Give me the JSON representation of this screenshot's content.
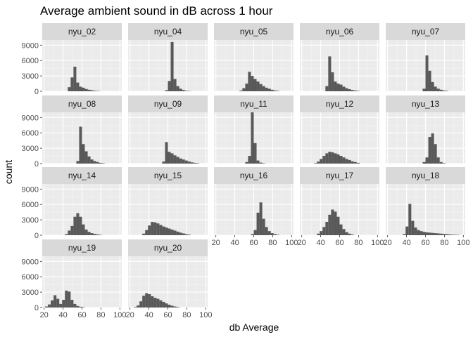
{
  "chart_data": {
    "type": "bar",
    "title": "Average ambient sound in dB across 1 hour",
    "xlabel": "db Average",
    "ylabel": "count",
    "xlim": [
      18,
      102
    ],
    "ylim": [
      0,
      10000
    ],
    "x_ticks": [
      20,
      40,
      60,
      80,
      100
    ],
    "y_ticks": [
      0,
      3000,
      6000,
      9000
    ],
    "bin_width": 3,
    "grid": true,
    "facets": [
      {
        "name": "nyu_02",
        "bins": [
          [
            45,
            800
          ],
          [
            48,
            2700
          ],
          [
            51,
            4800
          ],
          [
            54,
            1700
          ],
          [
            57,
            900
          ],
          [
            60,
            700
          ],
          [
            63,
            450
          ],
          [
            66,
            300
          ],
          [
            69,
            200
          ],
          [
            72,
            100
          ],
          [
            75,
            60
          ],
          [
            78,
            30
          ]
        ]
      },
      {
        "name": "nyu_04",
        "bins": [
          [
            57,
            200
          ],
          [
            60,
            2000
          ],
          [
            63,
            9600
          ],
          [
            66,
            2400
          ],
          [
            69,
            1000
          ],
          [
            72,
            500
          ],
          [
            75,
            250
          ],
          [
            78,
            100
          ],
          [
            81,
            50
          ]
        ]
      },
      {
        "name": "nyu_05",
        "bins": [
          [
            45,
            150
          ],
          [
            48,
            600
          ],
          [
            51,
            1500
          ],
          [
            54,
            3800
          ],
          [
            57,
            3000
          ],
          [
            60,
            2400
          ],
          [
            63,
            1900
          ],
          [
            66,
            1400
          ],
          [
            69,
            1000
          ],
          [
            72,
            700
          ],
          [
            75,
            500
          ],
          [
            78,
            300
          ],
          [
            81,
            150
          ],
          [
            84,
            80
          ]
        ]
      },
      {
        "name": "nyu_06",
        "bins": [
          [
            45,
            1000
          ],
          [
            48,
            6800
          ],
          [
            51,
            3700
          ],
          [
            54,
            1900
          ],
          [
            57,
            1500
          ],
          [
            60,
            1300
          ],
          [
            63,
            900
          ],
          [
            66,
            600
          ],
          [
            69,
            400
          ],
          [
            72,
            250
          ],
          [
            75,
            150
          ],
          [
            78,
            80
          ]
        ]
      },
      {
        "name": "nyu_07",
        "bins": [
          [
            57,
            500
          ],
          [
            60,
            7000
          ],
          [
            63,
            4000
          ],
          [
            66,
            1800
          ],
          [
            69,
            900
          ],
          [
            72,
            500
          ],
          [
            75,
            300
          ],
          [
            78,
            150
          ],
          [
            81,
            80
          ]
        ]
      },
      {
        "name": "nyu_08",
        "bins": [
          [
            54,
            500
          ],
          [
            57,
            7200
          ],
          [
            60,
            3800
          ],
          [
            63,
            2400
          ],
          [
            66,
            1400
          ],
          [
            69,
            800
          ],
          [
            72,
            500
          ],
          [
            75,
            300
          ],
          [
            78,
            150
          ],
          [
            81,
            80
          ]
        ]
      },
      {
        "name": "nyu_09",
        "bins": [
          [
            54,
            400
          ],
          [
            57,
            4200
          ],
          [
            60,
            2300
          ],
          [
            63,
            2000
          ],
          [
            66,
            1600
          ],
          [
            69,
            1300
          ],
          [
            72,
            1000
          ],
          [
            75,
            800
          ],
          [
            78,
            600
          ],
          [
            81,
            400
          ],
          [
            84,
            250
          ],
          [
            87,
            150
          ],
          [
            90,
            80
          ]
        ]
      },
      {
        "name": "nyu_11",
        "bins": [
          [
            51,
            300
          ],
          [
            54,
            1500
          ],
          [
            57,
            10000
          ],
          [
            60,
            4000
          ],
          [
            63,
            600
          ],
          [
            66,
            200
          ],
          [
            69,
            80
          ]
        ]
      },
      {
        "name": "nyu_12",
        "bins": [
          [
            33,
            100
          ],
          [
            36,
            400
          ],
          [
            39,
            900
          ],
          [
            42,
            1500
          ],
          [
            45,
            2000
          ],
          [
            48,
            2300
          ],
          [
            51,
            2200
          ],
          [
            54,
            2000
          ],
          [
            57,
            1800
          ],
          [
            60,
            1500
          ],
          [
            63,
            1200
          ],
          [
            66,
            900
          ],
          [
            69,
            700
          ],
          [
            72,
            450
          ],
          [
            75,
            300
          ],
          [
            78,
            150
          ]
        ]
      },
      {
        "name": "nyu_13",
        "bins": [
          [
            57,
            300
          ],
          [
            60,
            1200
          ],
          [
            63,
            5200
          ],
          [
            66,
            5900
          ],
          [
            69,
            3800
          ],
          [
            72,
            1200
          ],
          [
            75,
            300
          ],
          [
            78,
            100
          ]
        ]
      },
      {
        "name": "nyu_14",
        "bins": [
          [
            42,
            200
          ],
          [
            45,
            900
          ],
          [
            48,
            1800
          ],
          [
            51,
            3600
          ],
          [
            54,
            4300
          ],
          [
            57,
            3600
          ],
          [
            60,
            2100
          ],
          [
            63,
            1100
          ],
          [
            66,
            650
          ],
          [
            69,
            400
          ],
          [
            72,
            250
          ],
          [
            75,
            150
          ],
          [
            78,
            80
          ]
        ]
      },
      {
        "name": "nyu_15",
        "bins": [
          [
            33,
            300
          ],
          [
            36,
            1000
          ],
          [
            39,
            1900
          ],
          [
            42,
            2600
          ],
          [
            45,
            2500
          ],
          [
            48,
            2300
          ],
          [
            51,
            2000
          ],
          [
            54,
            1700
          ],
          [
            57,
            1500
          ],
          [
            60,
            1300
          ],
          [
            63,
            1100
          ],
          [
            66,
            900
          ],
          [
            69,
            700
          ],
          [
            72,
            500
          ],
          [
            75,
            350
          ],
          [
            78,
            200
          ],
          [
            81,
            100
          ]
        ]
      },
      {
        "name": "nyu_16",
        "bins": [
          [
            57,
            200
          ],
          [
            60,
            1000
          ],
          [
            63,
            4400
          ],
          [
            66,
            6400
          ],
          [
            69,
            3200
          ],
          [
            72,
            1600
          ],
          [
            75,
            800
          ],
          [
            78,
            400
          ],
          [
            81,
            200
          ],
          [
            84,
            80
          ]
        ]
      },
      {
        "name": "nyu_17",
        "bins": [
          [
            36,
            300
          ],
          [
            39,
            800
          ],
          [
            42,
            1600
          ],
          [
            45,
            2600
          ],
          [
            48,
            4000
          ],
          [
            51,
            5000
          ],
          [
            54,
            4600
          ],
          [
            57,
            3600
          ],
          [
            60,
            2100
          ],
          [
            63,
            1200
          ],
          [
            66,
            600
          ],
          [
            69,
            300
          ],
          [
            72,
            120
          ]
        ]
      },
      {
        "name": "nyu_18",
        "bins": [
          [
            36,
            200
          ],
          [
            39,
            1700
          ],
          [
            42,
            6100
          ],
          [
            45,
            2800
          ],
          [
            48,
            1500
          ],
          [
            51,
            1000
          ],
          [
            54,
            800
          ],
          [
            57,
            650
          ],
          [
            60,
            550
          ],
          [
            63,
            500
          ],
          [
            66,
            450
          ],
          [
            69,
            400
          ],
          [
            72,
            350
          ],
          [
            75,
            300
          ],
          [
            78,
            250
          ],
          [
            81,
            200
          ],
          [
            84,
            150
          ],
          [
            87,
            100
          ],
          [
            90,
            80
          ],
          [
            93,
            50
          ]
        ]
      },
      {
        "name": "nyu_19",
        "bins": [
          [
            21,
            200
          ],
          [
            24,
            600
          ],
          [
            27,
            1400
          ],
          [
            30,
            2400
          ],
          [
            33,
            1700
          ],
          [
            36,
            700
          ],
          [
            39,
            1500
          ],
          [
            42,
            3300
          ],
          [
            45,
            3100
          ],
          [
            48,
            1500
          ],
          [
            51,
            700
          ],
          [
            54,
            300
          ],
          [
            57,
            150
          ],
          [
            60,
            80
          ]
        ]
      },
      {
        "name": "nyu_20",
        "bins": [
          [
            24,
            100
          ],
          [
            27,
            400
          ],
          [
            30,
            1200
          ],
          [
            33,
            2300
          ],
          [
            36,
            2800
          ],
          [
            39,
            2600
          ],
          [
            42,
            2200
          ],
          [
            45,
            1900
          ],
          [
            48,
            1700
          ],
          [
            51,
            1400
          ],
          [
            54,
            1100
          ],
          [
            57,
            800
          ],
          [
            60,
            550
          ],
          [
            63,
            350
          ],
          [
            66,
            200
          ],
          [
            69,
            100
          ]
        ]
      }
    ]
  }
}
